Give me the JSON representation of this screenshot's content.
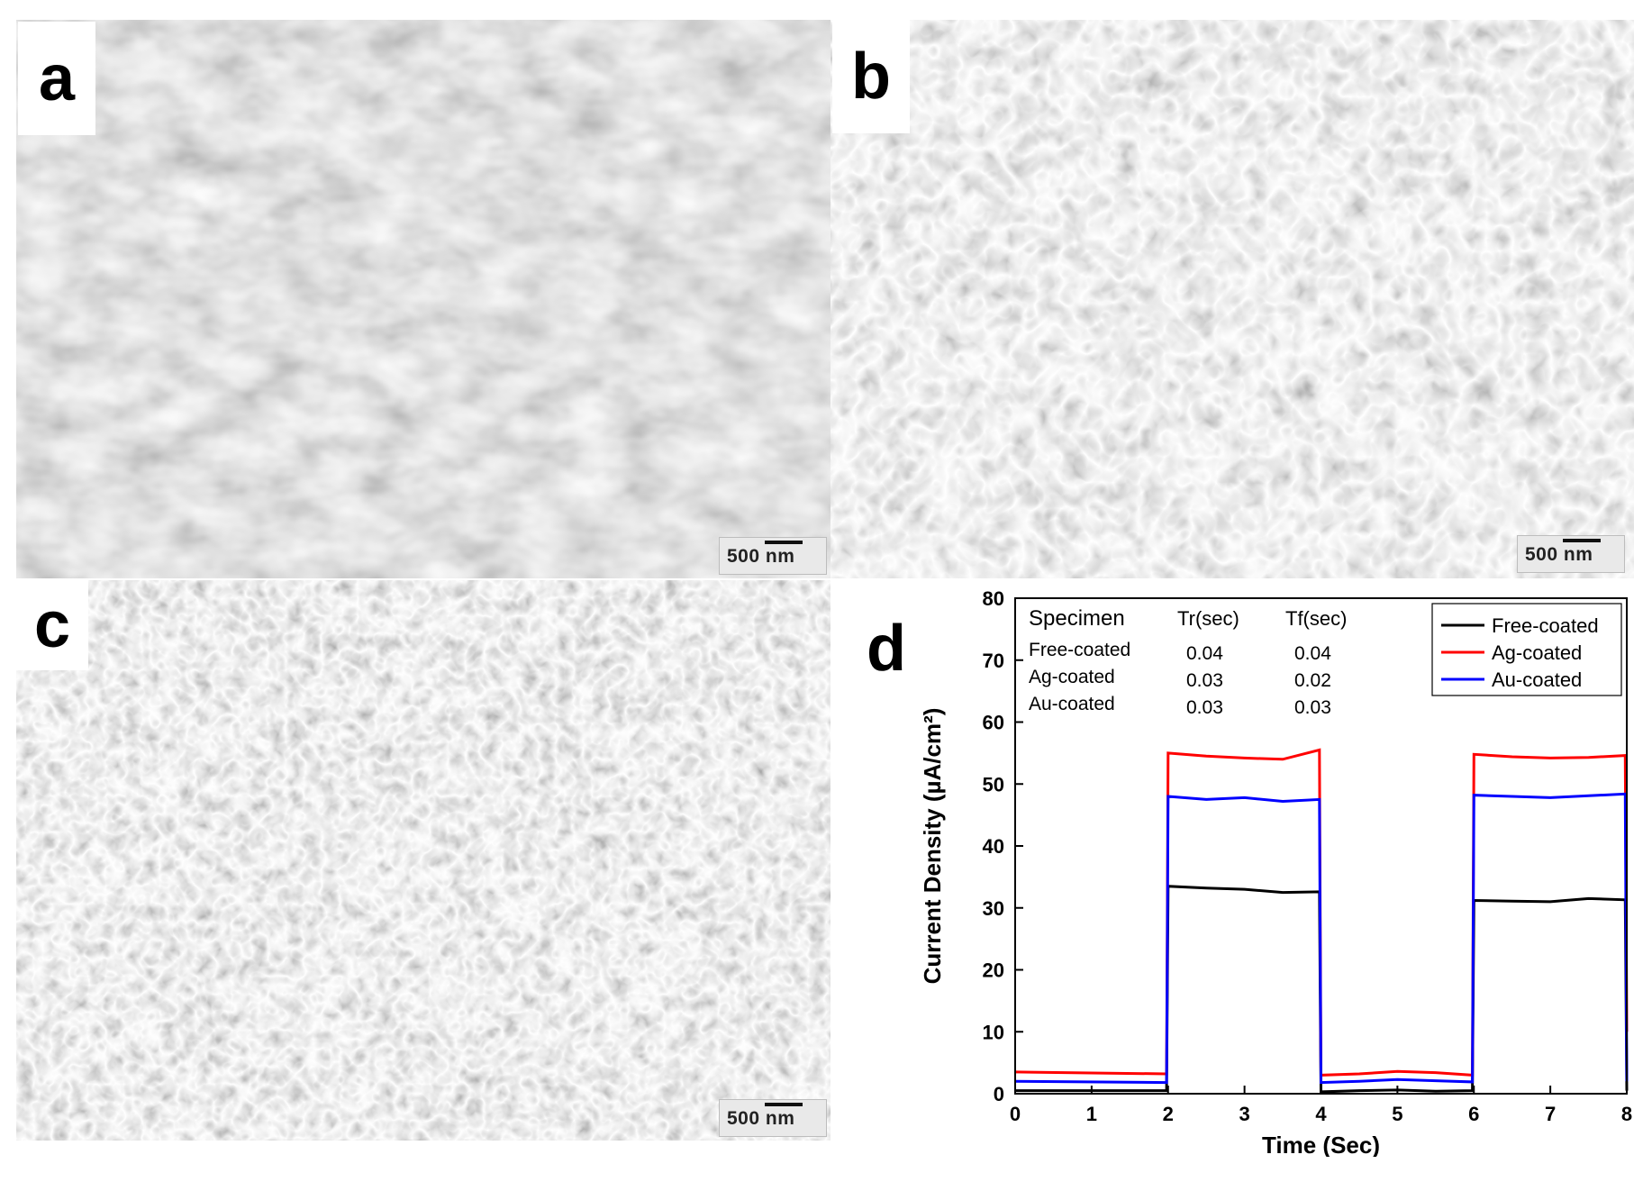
{
  "panels": [
    {
      "letter": "a",
      "scale_bar": "500 nm"
    },
    {
      "letter": "b",
      "scale_bar": "500 nm"
    },
    {
      "letter": "c",
      "scale_bar": "500 nm"
    },
    {
      "letter": "d"
    }
  ],
  "chart_data": {
    "type": "line",
    "xlabel": "Time (Sec)",
    "ylabel": "Current Density (µA/cm²)",
    "xlim": [
      0,
      8
    ],
    "ylim": [
      0,
      80
    ],
    "xticks": [
      0,
      1,
      2,
      3,
      4,
      5,
      6,
      7,
      8
    ],
    "yticks": [
      0,
      10,
      20,
      30,
      40,
      50,
      60,
      70,
      80
    ],
    "grid": false,
    "legend_position": "top-right",
    "series": [
      {
        "name": "Free-coated",
        "color": "#000000",
        "x": [
          0,
          1.98,
          2.0,
          2.5,
          3.0,
          3.5,
          3.98,
          4.0,
          4.5,
          5.0,
          5.5,
          5.98,
          6.0,
          6.5,
          7.0,
          7.5,
          7.98,
          8.0
        ],
        "y": [
          0.5,
          0.5,
          33.5,
          33.2,
          33.0,
          32.5,
          32.6,
          0.3,
          0.5,
          0.6,
          0.4,
          0.5,
          31.2,
          31.1,
          31.0,
          31.5,
          31.3,
          0.5
        ]
      },
      {
        "name": "Ag-coated",
        "color": "#ff0000",
        "x": [
          0,
          1.98,
          2.0,
          2.5,
          3.0,
          3.5,
          3.98,
          4.0,
          4.5,
          5.0,
          5.5,
          5.98,
          6.0,
          6.5,
          7.0,
          7.5,
          7.98,
          8.0
        ],
        "y": [
          3.5,
          3.2,
          55.0,
          54.5,
          54.2,
          54.0,
          55.5,
          3.0,
          3.2,
          3.6,
          3.4,
          3.0,
          54.8,
          54.4,
          54.2,
          54.3,
          54.6,
          10.0
        ]
      },
      {
        "name": "Au-coated",
        "color": "#0000ff",
        "x": [
          0,
          1.98,
          2.0,
          2.5,
          3.0,
          3.5,
          3.98,
          4.0,
          4.5,
          5.0,
          5.5,
          5.98,
          6.0,
          6.5,
          7.0,
          7.5,
          7.98,
          8.0
        ],
        "y": [
          2.0,
          1.8,
          48.0,
          47.5,
          47.8,
          47.2,
          47.5,
          1.8,
          2.0,
          2.3,
          2.1,
          1.9,
          48.2,
          48.0,
          47.8,
          48.1,
          48.4,
          2.0
        ]
      }
    ],
    "inset_table": {
      "headers": [
        "Specimen",
        "Tr(sec)",
        "Tf(sec)"
      ],
      "rows": [
        [
          "Free-coated",
          "0.04",
          "0.04"
        ],
        [
          "Ag-coated",
          "0.03",
          "0.02"
        ],
        [
          "Au-coated",
          "0.03",
          "0.03"
        ]
      ]
    }
  }
}
